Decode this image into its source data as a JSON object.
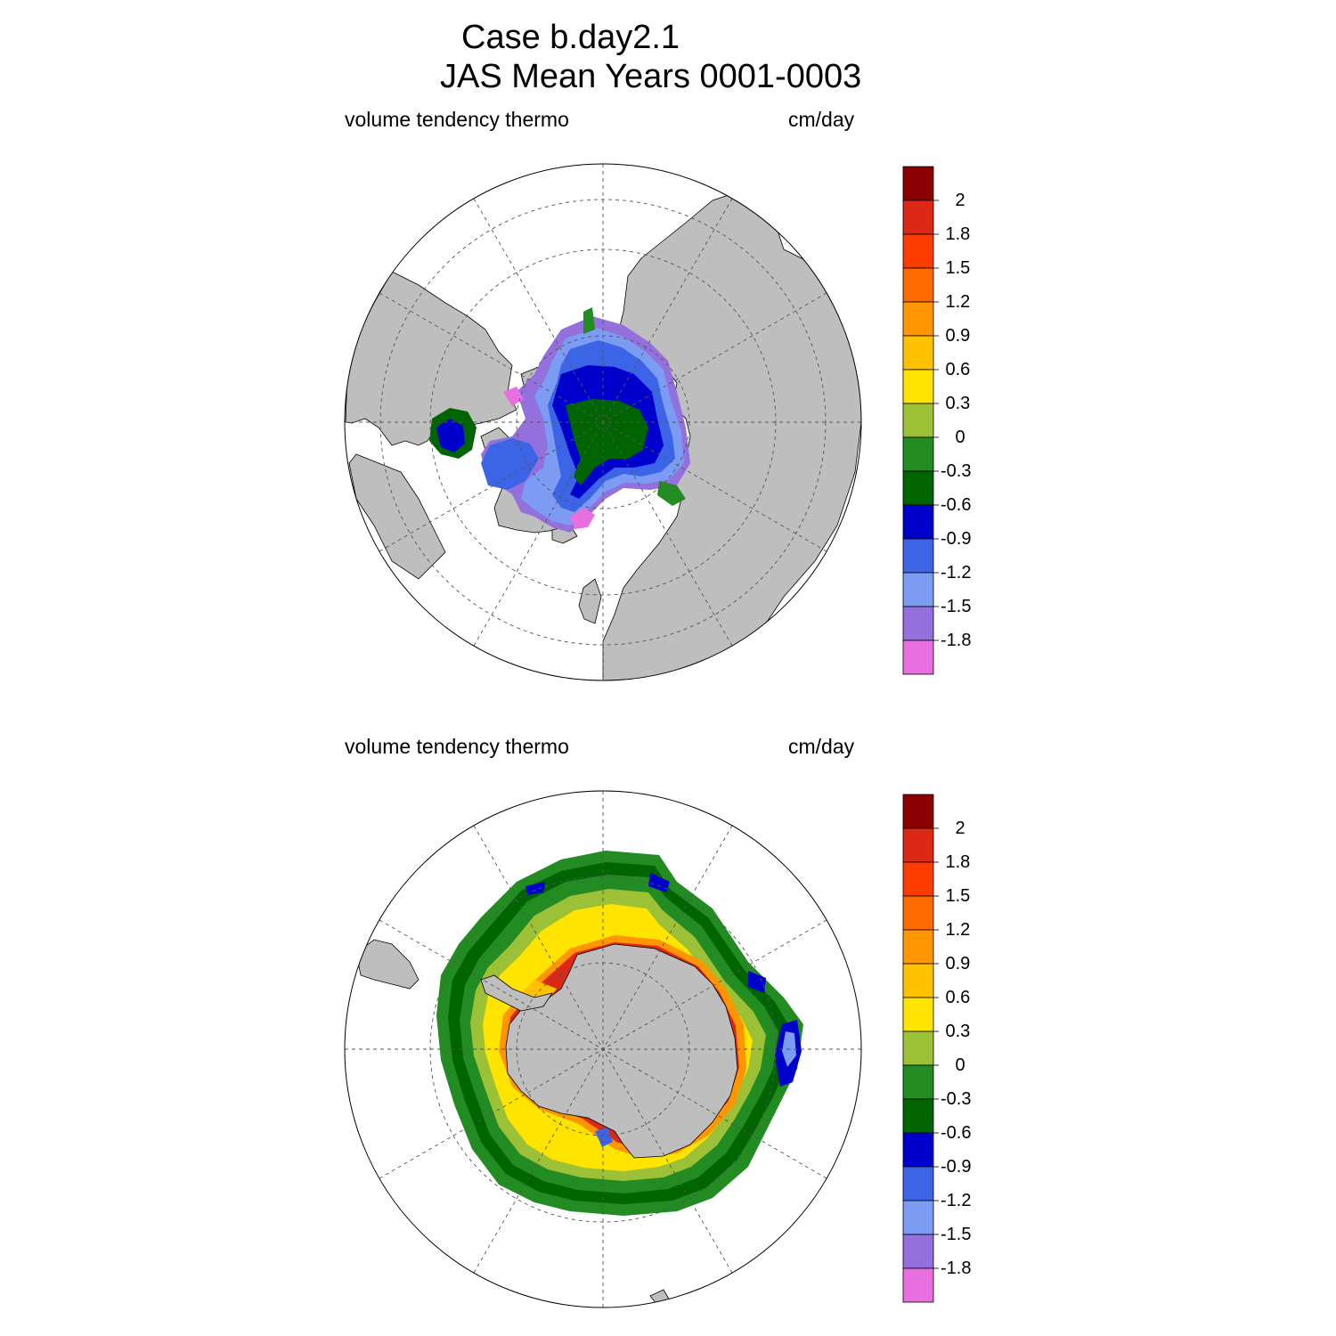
{
  "title": {
    "line1": "Case b.day2.1",
    "line2": "JAS Mean   Years 0001-0003"
  },
  "panels": [
    {
      "id": "north",
      "variable_label": "volume tendency thermo",
      "units_label": "cm/day",
      "hemisphere": "Arctic (north polar stereographic)"
    },
    {
      "id": "south",
      "variable_label": "volume tendency thermo",
      "units_label": "cm/day",
      "hemisphere": "Antarctic (south polar stereographic)"
    }
  ],
  "colorbar": {
    "labels": [
      "2",
      "1.8",
      "1.5",
      "1.2",
      "0.9",
      "0.6",
      "0.3",
      "0",
      "-0.3",
      "-0.6",
      "-0.9",
      "-1.2",
      "-1.5",
      "-1.8"
    ],
    "colors": [
      "#8b0000",
      "#dc2814",
      "#ff3c00",
      "#ff6a00",
      "#ff9500",
      "#ffc200",
      "#ffe400",
      "#9cc036",
      "#228b22",
      "#006400",
      "#0000cd",
      "#3c64e6",
      "#7b9cf2",
      "#9370db",
      "#e86fe0"
    ]
  },
  "colors": {
    "land": "#bebebe",
    "ocean": "#ffffff",
    "grid": "#555555"
  }
}
